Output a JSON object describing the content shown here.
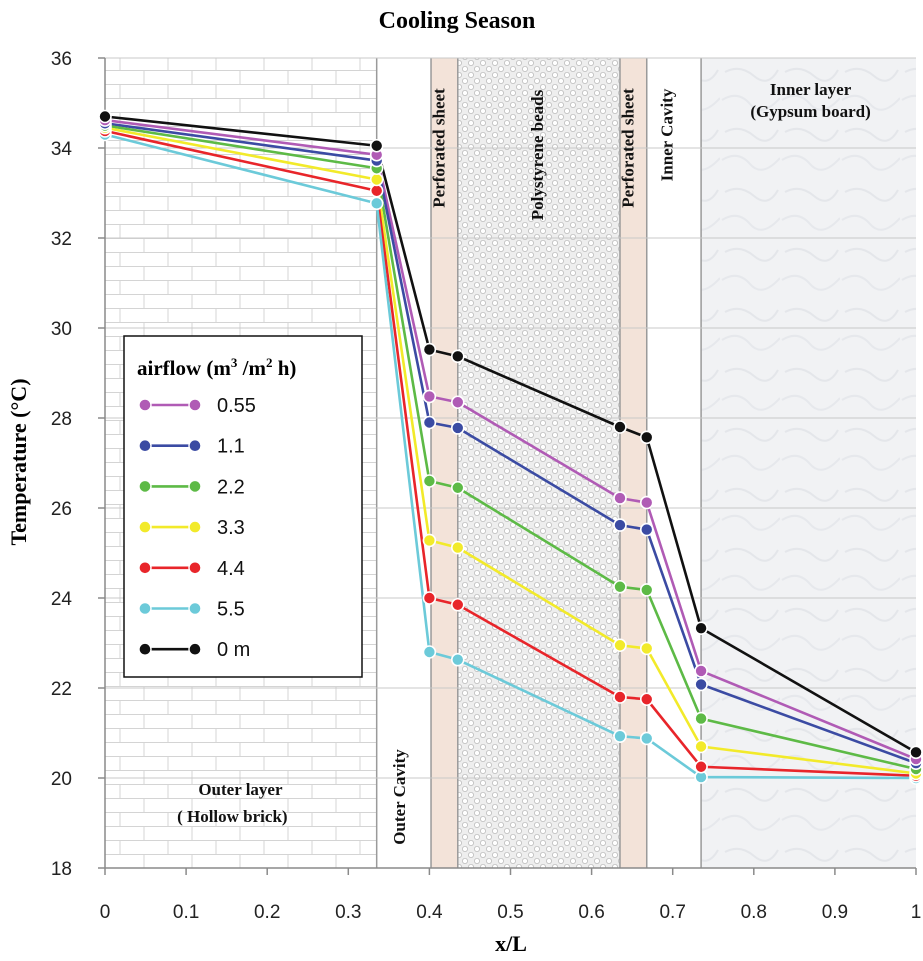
{
  "chart_data": {
    "type": "line",
    "title": "Cooling Season",
    "xlabel": "x/L",
    "ylabel": "Temperature (°C)",
    "xlim": [
      0,
      1
    ],
    "ylim": [
      18,
      36
    ],
    "xticks": [
      0,
      0.1,
      0.2,
      0.3,
      0.4,
      0.5,
      0.6,
      0.7,
      0.8,
      0.9,
      1
    ],
    "xtick_labels": [
      "0",
      "0.1",
      "0.2",
      "0.3",
      "0.4",
      "0.5",
      "0.6",
      "0.7",
      "0.8",
      "0.9",
      "1"
    ],
    "yticks": [
      18,
      20,
      22,
      24,
      26,
      28,
      30,
      32,
      34,
      36
    ],
    "ytick_labels": [
      "18",
      "20",
      "22",
      "24",
      "26",
      "28",
      "30",
      "32",
      "34",
      "36"
    ],
    "grid": true,
    "x": [
      0,
      0.335,
      0.4,
      0.435,
      0.635,
      0.668,
      0.735,
      1
    ],
    "legend": {
      "title_main": "airflow (m",
      "title_sup1": "3",
      "title_mid": " /m",
      "title_sup2": "2",
      "title_end": " h)",
      "placement": "center-left"
    },
    "series": [
      {
        "name": "0.55",
        "color": "#b05bb5",
        "values": [
          34.62,
          33.85,
          28.48,
          28.35,
          26.22,
          26.12,
          22.38,
          20.42
        ]
      },
      {
        "name": "1.1",
        "color": "#3b4ba3",
        "values": [
          34.55,
          33.72,
          27.9,
          27.78,
          25.62,
          25.52,
          22.08,
          20.33
        ]
      },
      {
        "name": "2.2",
        "color": "#5dba46",
        "values": [
          34.5,
          33.55,
          26.6,
          26.45,
          24.25,
          24.18,
          21.32,
          20.2
        ]
      },
      {
        "name": "3.3",
        "color": "#f2ea2a",
        "values": [
          34.45,
          33.3,
          25.28,
          25.12,
          22.95,
          22.88,
          20.7,
          20.1
        ]
      },
      {
        "name": "4.4",
        "color": "#e8252a",
        "values": [
          34.38,
          33.05,
          24.0,
          23.85,
          21.8,
          21.75,
          20.25,
          20.05
        ]
      },
      {
        "name": "5.5",
        "color": "#6ccad9",
        "values": [
          34.3,
          32.77,
          22.8,
          22.63,
          20.93,
          20.88,
          20.02,
          20.0
        ]
      },
      {
        "name": "0 m",
        "color": "#111111",
        "values": [
          34.7,
          34.05,
          29.52,
          29.37,
          27.8,
          27.57,
          23.33,
          20.57
        ]
      }
    ],
    "regions": [
      {
        "label": "Outer layer",
        "label2": "( Hollow brick)",
        "x0": 0,
        "x1": 0.335,
        "kind": "brick"
      },
      {
        "label": "Outer Cavity",
        "x0": 0.335,
        "x1": 0.402,
        "kind": "white"
      },
      {
        "label": "Perforated sheet",
        "x0": 0.402,
        "x1": 0.435,
        "kind": "sheet"
      },
      {
        "label": "Polystyrene beads",
        "x0": 0.435,
        "x1": 0.635,
        "kind": "beads"
      },
      {
        "label": "Perforated sheet",
        "x0": 0.635,
        "x1": 0.668,
        "kind": "sheet"
      },
      {
        "label": "Inner Cavity",
        "x0": 0.668,
        "x1": 0.735,
        "kind": "white"
      },
      {
        "label": "Inner layer",
        "label2": "(Gypsum board)",
        "x0": 0.735,
        "x1": 1,
        "kind": "gypsum"
      }
    ]
  }
}
